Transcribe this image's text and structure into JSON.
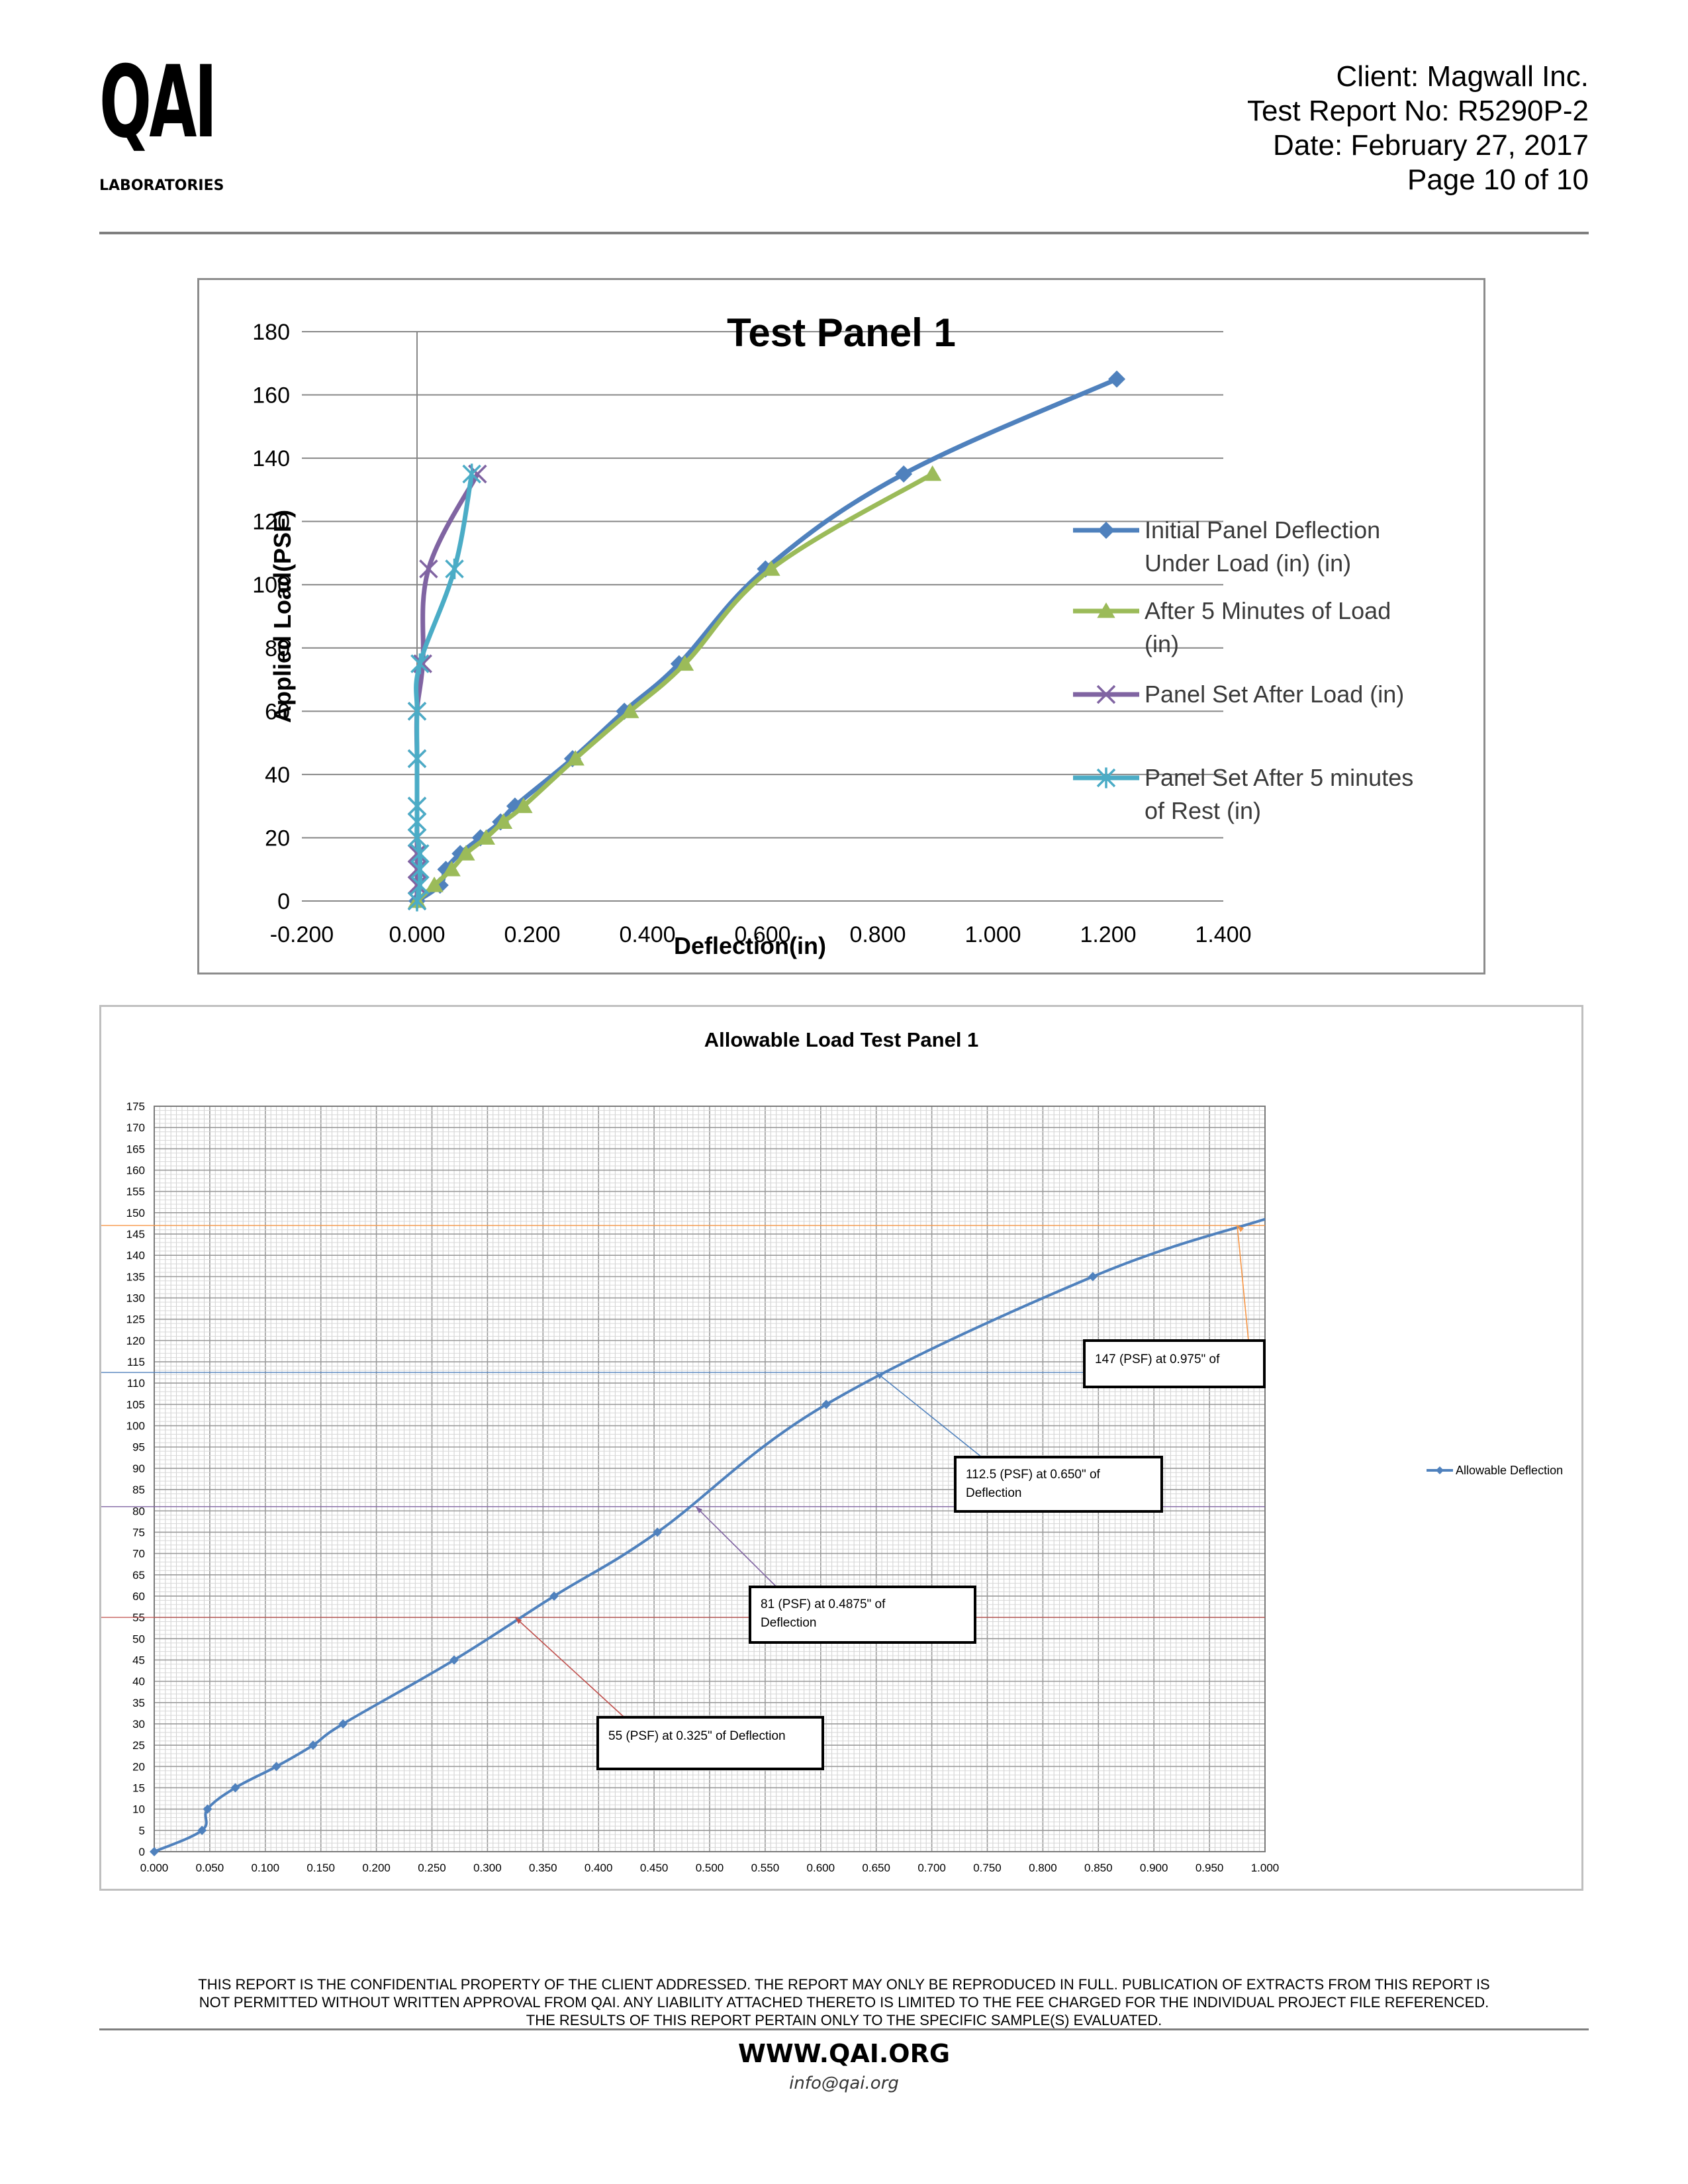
{
  "logo": {
    "mark": "QAI",
    "subtitle": "LABORATORIES"
  },
  "header": {
    "client": "Client: Magwall Inc.",
    "report_no": "Test Report No: R5290P-2",
    "date": "Date: February 27, 2017",
    "page": "Page 10 of 10"
  },
  "chart_data": [
    {
      "type": "line",
      "title": "Test Panel 1",
      "xlabel": "Deflection(in)",
      "ylabel": "Applied Load(PSF)",
      "xlim": [
        -0.2,
        1.4
      ],
      "ylim": [
        0,
        180
      ],
      "x_ticks": [
        "-0.200",
        "0.000",
        "0.200",
        "0.400",
        "0.600",
        "0.800",
        "1.000",
        "1.200",
        "1.400"
      ],
      "y_ticks": [
        "0",
        "20",
        "40",
        "60",
        "80",
        "100",
        "120",
        "140",
        "160",
        "180"
      ],
      "grid": "horizontal",
      "legend_position": "right",
      "series": [
        {
          "name": "Initial Panel Deflection Under Load (in) (in)",
          "color": "#4F81BD",
          "marker": "diamond",
          "points": [
            [
              0.0,
              0
            ],
            [
              0.04,
              5
            ],
            [
              0.05,
              10
            ],
            [
              0.075,
              15
            ],
            [
              0.11,
              20
            ],
            [
              0.145,
              25
            ],
            [
              0.17,
              30
            ],
            [
              0.27,
              45
            ],
            [
              0.36,
              60
            ],
            [
              0.455,
              75
            ],
            [
              0.605,
              105
            ],
            [
              0.845,
              135
            ],
            [
              1.215,
              165
            ]
          ]
        },
        {
          "name": "After 5 Minutes of Load (in)",
          "color": "#9BBB59",
          "marker": "triangle",
          "points": [
            [
              0.0,
              0
            ],
            [
              0.03,
              5
            ],
            [
              0.06,
              10
            ],
            [
              0.085,
              15
            ],
            [
              0.12,
              20
            ],
            [
              0.15,
              25
            ],
            [
              0.185,
              30
            ],
            [
              0.275,
              45
            ],
            [
              0.37,
              60
            ],
            [
              0.465,
              75
            ],
            [
              0.615,
              105
            ],
            [
              0.895,
              135
            ]
          ]
        },
        {
          "name": "Panel Set After Load (in)",
          "color": "#8064A2",
          "marker": "x",
          "points": [
            [
              0.0,
              0
            ],
            [
              0.0,
              5
            ],
            [
              0.0,
              10
            ],
            [
              0.0,
              15
            ],
            [
              0.0,
              20
            ],
            [
              0.0,
              25
            ],
            [
              0.0,
              30
            ],
            [
              0.0,
              45
            ],
            [
              0.0,
              60
            ],
            [
              0.01,
              75
            ],
            [
              0.02,
              105
            ],
            [
              0.105,
              135
            ]
          ]
        },
        {
          "name": "Panel Set After 5 minutes of Rest (in)",
          "color": "#4BACC6",
          "marker": "star",
          "points": [
            [
              0.0,
              0
            ],
            [
              0.005,
              5
            ],
            [
              0.005,
              10
            ],
            [
              0.005,
              15
            ],
            [
              0.0,
              20
            ],
            [
              0.0,
              25
            ],
            [
              0.0,
              30
            ],
            [
              0.0,
              45
            ],
            [
              0.0,
              60
            ],
            [
              0.005,
              75
            ],
            [
              0.065,
              105
            ],
            [
              0.095,
              135
            ]
          ]
        }
      ]
    },
    {
      "type": "line",
      "title": "Allowable Load Test Panel 1",
      "xlim": [
        0,
        1.0
      ],
      "ylim": [
        0,
        175
      ],
      "x_ticks": [
        "0.000",
        "0.050",
        "0.100",
        "0.150",
        "0.200",
        "0.250",
        "0.300",
        "0.350",
        "0.400",
        "0.450",
        "0.500",
        "0.550",
        "0.600",
        "0.650",
        "0.700",
        "0.750",
        "0.800",
        "0.850",
        "0.900",
        "0.950",
        "1.000"
      ],
      "y_ticks": [
        "0",
        "5",
        "10",
        "15",
        "20",
        "25",
        "30",
        "35",
        "40",
        "45",
        "50",
        "55",
        "60",
        "65",
        "70",
        "75",
        "80",
        "85",
        "90",
        "95",
        "100",
        "105",
        "110",
        "115",
        "120",
        "125",
        "130",
        "135",
        "140",
        "145",
        "150",
        "155",
        "160",
        "165",
        "170",
        "175"
      ],
      "grid": "both-fine",
      "legend_position": "right",
      "series": [
        {
          "name": "Allowable Deflection",
          "color": "#4F81BD",
          "marker": "diamond",
          "points": [
            [
              0.0,
              0
            ],
            [
              0.043,
              5
            ],
            [
              0.048,
              10
            ],
            [
              0.073,
              15
            ],
            [
              0.11,
              20
            ],
            [
              0.143,
              25
            ],
            [
              0.17,
              30
            ],
            [
              0.27,
              45
            ],
            [
              0.36,
              60
            ],
            [
              0.453,
              75
            ],
            [
              0.605,
              105
            ],
            [
              0.845,
              135
            ]
          ],
          "extends_to": [
            1.0,
            148.5
          ]
        }
      ],
      "annotations": [
        {
          "text": "55 (PSF) at 0.325\" of Deflection",
          "x": 0.325,
          "y": 55,
          "color": "#C0504D"
        },
        {
          "text_line1": "81 (PSF) at 0.4875\" of",
          "text_line2": "Deflection",
          "x": 0.4875,
          "y": 81,
          "color": "#8064A2"
        },
        {
          "text_line1": "112.5 (PSF) at 0.650\" of",
          "text_line2": "Deflection",
          "x": 0.65,
          "y": 112.5,
          "color": "#4F81BD"
        },
        {
          "text": "147 (PSF) at 0.975\"  of",
          "x": 0.975,
          "y": 147,
          "color": "#F79646"
        }
      ]
    }
  ],
  "footer": {
    "line1": "THIS REPORT IS THE CONFIDENTIAL PROPERTY OF THE CLIENT ADDRESSED. THE REPORT MAY ONLY BE REPRODUCED IN FULL. PUBLICATION OF EXTRACTS FROM THIS REPORT IS",
    "line2": "NOT PERMITTED WITHOUT WRITTEN APPROVAL FROM QAI. ANY LIABILITY ATTACHED THERETO IS LIMITED TO THE FEE CHARGED FOR THE INDIVIDUAL PROJECT FILE REFERENCED.",
    "line3": "THE RESULTS OF THIS REPORT PERTAIN ONLY TO THE SPECIFIC SAMPLE(S) EVALUATED.",
    "website": "WWW.QAI.ORG",
    "email": "info@qai.org"
  }
}
